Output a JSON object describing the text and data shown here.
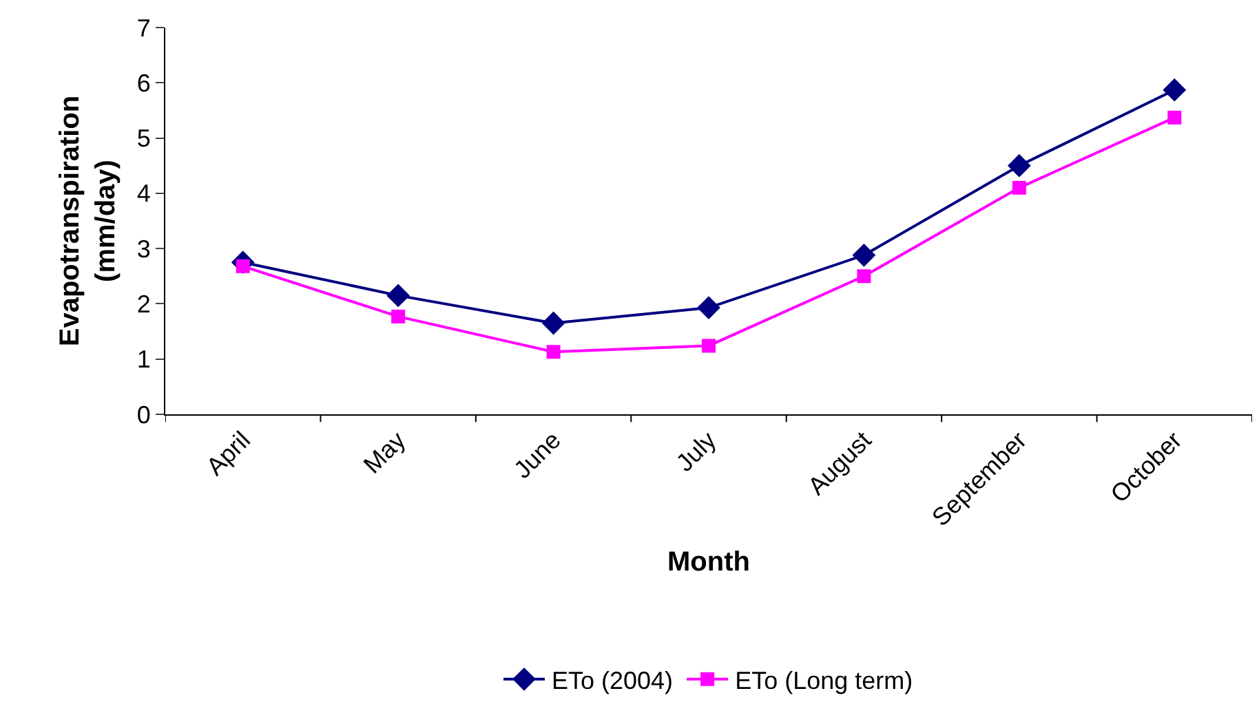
{
  "chart_data": {
    "type": "line",
    "xlabel": "Month",
    "ylabel": "Evapotranspiration\n(mm/day)",
    "categories": [
      "April",
      "May",
      "June",
      "July",
      "August",
      "September",
      "October"
    ],
    "series": [
      {
        "name": "ETo (2004)",
        "color": "#000080",
        "marker": "diamond",
        "values": [
          2.75,
          2.15,
          1.65,
          1.93,
          2.88,
          4.5,
          5.87
        ]
      },
      {
        "name": "ETo (Long term)",
        "color": "#ff00ff",
        "marker": "square",
        "values": [
          2.68,
          1.77,
          1.13,
          1.24,
          2.5,
          4.1,
          5.37
        ]
      }
    ],
    "ylim": [
      0,
      7
    ],
    "yticks": [
      0,
      1,
      2,
      3,
      4,
      5,
      6,
      7
    ],
    "legend": "bottom"
  }
}
